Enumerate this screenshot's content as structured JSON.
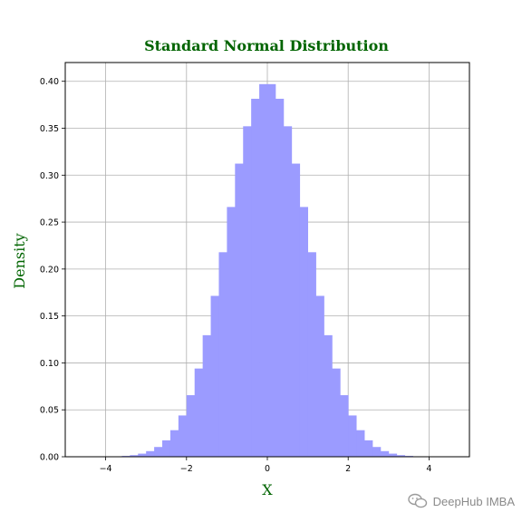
{
  "chart_data": {
    "type": "bar",
    "title": "Standard Normal Distribution",
    "xlabel": "X",
    "ylabel": "Density",
    "xlim": [
      -5.0,
      5.0
    ],
    "ylim": [
      0,
      0.42
    ],
    "xticks": [
      -4,
      -2,
      0,
      2,
      4
    ],
    "xtick_labels": [
      "−4",
      "−2",
      "0",
      "2",
      "4"
    ],
    "yticks": [
      0.0,
      0.05,
      0.1,
      0.15,
      0.2,
      0.25,
      0.3,
      0.35,
      0.4
    ],
    "ytick_labels": [
      "0.00",
      "0.05",
      "0.10",
      "0.15",
      "0.20",
      "0.25",
      "0.30",
      "0.35",
      "0.40"
    ],
    "grid": true,
    "bar_color": "#9b9bff",
    "label_color": "#006400",
    "series": [
      {
        "x": [
          -3.9,
          -3.7,
          -3.5,
          -3.3,
          -3.1,
          -2.9,
          -2.7,
          -2.5,
          -2.3,
          -2.1,
          -1.9,
          -1.7,
          -1.5,
          -1.3,
          -1.1,
          -0.9,
          -0.7,
          -0.5,
          -0.3,
          -0.1,
          0.1,
          0.3,
          0.5,
          0.7,
          0.9,
          1.1,
          1.3,
          1.5,
          1.7,
          1.9,
          2.1,
          2.3,
          2.5,
          2.7,
          2.9,
          3.1,
          3.3,
          3.5,
          3.7,
          3.9
        ],
        "values": [
          0.0002,
          0.0004,
          0.0009,
          0.0017,
          0.0033,
          0.006,
          0.0104,
          0.0175,
          0.0283,
          0.044,
          0.0656,
          0.094,
          0.1295,
          0.1714,
          0.2179,
          0.2661,
          0.3123,
          0.3521,
          0.3814,
          0.397,
          0.397,
          0.3814,
          0.3521,
          0.3123,
          0.2661,
          0.2179,
          0.1714,
          0.1295,
          0.094,
          0.0656,
          0.044,
          0.0283,
          0.0175,
          0.0104,
          0.006,
          0.0033,
          0.0017,
          0.0009,
          0.0004,
          0.0002
        ]
      }
    ]
  },
  "watermark": {
    "icon": "wechat-icon",
    "text": "DeepHub IMBA"
  }
}
